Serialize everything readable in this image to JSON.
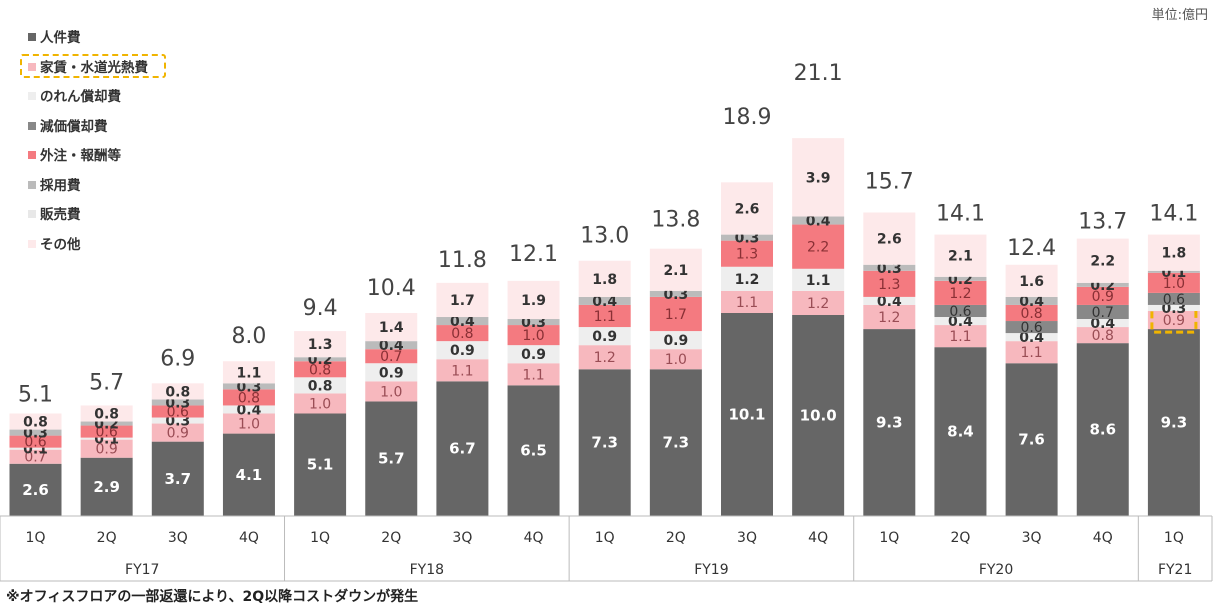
{
  "unit_label": "単位:億円",
  "note": "※オフィスフロアの一部返還により、2Q以降コストダウンが発生",
  "colors": {
    "人件費": "#666666",
    "家賃・水道光熱費": "#f7b8be",
    "のれん償却費": "#eeeeee",
    "減価償却費": "#888888",
    "外注・報酬等": "#f47a80",
    "採用費": "#bbbbbb",
    "販売費": "#e8e8e8",
    "その他": "#fde9ea",
    "highlight": "#f0b400"
  },
  "chart_data": {
    "type": "bar",
    "stacked": true,
    "categories": [
      "1Q",
      "2Q",
      "3Q",
      "4Q",
      "1Q",
      "2Q",
      "3Q",
      "4Q",
      "1Q",
      "2Q",
      "3Q",
      "4Q",
      "1Q",
      "2Q",
      "3Q",
      "4Q",
      "1Q"
    ],
    "groups": [
      {
        "label": "FY17",
        "count": 4
      },
      {
        "label": "FY18",
        "count": 4
      },
      {
        "label": "FY19",
        "count": 4
      },
      {
        "label": "FY20",
        "count": 4
      },
      {
        "label": "FY21",
        "count": 1
      }
    ],
    "totals": [
      5.1,
      5.7,
      6.9,
      8.0,
      9.4,
      10.4,
      11.8,
      12.1,
      13.0,
      13.8,
      18.9,
      21.1,
      15.7,
      14.1,
      12.4,
      13.7,
      14.1
    ],
    "series": [
      {
        "name": "人件費",
        "values": [
          2.6,
          2.9,
          3.7,
          4.1,
          5.1,
          5.7,
          6.7,
          6.5,
          7.3,
          7.3,
          10.1,
          10.0,
          9.3,
          8.4,
          7.6,
          8.6,
          9.3
        ]
      },
      {
        "name": "家賃・水道光熱費",
        "values": [
          0.7,
          0.9,
          0.9,
          1.0,
          1.0,
          1.0,
          1.1,
          1.1,
          1.2,
          1.0,
          1.1,
          1.2,
          1.2,
          1.1,
          1.1,
          0.8,
          0.9
        ]
      },
      {
        "name": "のれん償却費",
        "values": [
          0.1,
          0.1,
          0.3,
          0.4,
          0.8,
          0.9,
          0.9,
          0.9,
          0.9,
          0.9,
          1.2,
          1.1,
          0.4,
          0.4,
          0.4,
          0.4,
          0.3
        ]
      },
      {
        "name": "減価償却費",
        "values": [
          null,
          null,
          null,
          null,
          null,
          null,
          null,
          null,
          null,
          null,
          null,
          null,
          null,
          0.6,
          0.6,
          0.7,
          0.6
        ]
      },
      {
        "name": "外注・報酬等",
        "values": [
          0.6,
          0.6,
          0.6,
          0.8,
          0.8,
          0.7,
          0.8,
          1.0,
          1.1,
          1.7,
          1.3,
          2.2,
          1.3,
          1.2,
          0.8,
          0.9,
          1.0
        ]
      },
      {
        "name": "採用費",
        "values": [
          0.3,
          0.2,
          0.3,
          0.3,
          0.2,
          0.4,
          0.4,
          0.3,
          0.4,
          0.3,
          0.3,
          0.4,
          0.3,
          0.2,
          0.4,
          0.2,
          0.1
        ]
      },
      {
        "name": "販売費",
        "values": [
          null,
          null,
          null,
          null,
          null,
          null,
          null,
          null,
          null,
          null,
          null,
          null,
          null,
          null,
          null,
          null,
          null
        ]
      },
      {
        "name": "その他",
        "values": [
          0.8,
          0.8,
          0.8,
          1.1,
          1.3,
          1.4,
          1.7,
          1.9,
          1.8,
          2.1,
          2.6,
          3.9,
          2.6,
          2.1,
          1.6,
          2.2,
          1.8
        ]
      }
    ],
    "highlight": {
      "series": "家賃・水道光熱費",
      "category_index": 16
    },
    "ylim": [
      0,
      22
    ],
    "grid": false,
    "legend": "top-left"
  }
}
